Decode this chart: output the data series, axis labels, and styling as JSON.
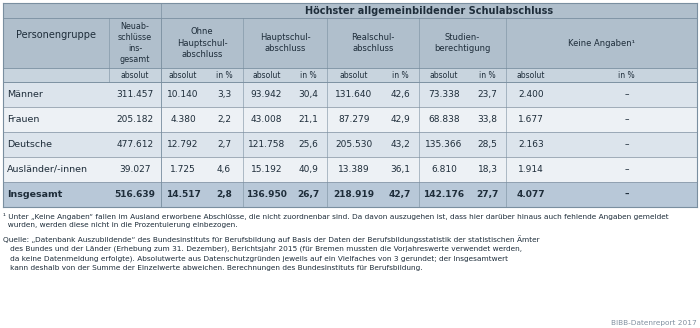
{
  "header_top": "Höchster allgemeinbildender Schulabschluss",
  "rows": [
    [
      "Männer",
      "311.457",
      "10.140",
      "3,3",
      "93.942",
      "30,4",
      "131.640",
      "42,6",
      "73.338",
      "23,7",
      "2.400",
      "–"
    ],
    [
      "Frauen",
      "205.182",
      "4.380",
      "2,2",
      "43.008",
      "21,1",
      "87.279",
      "42,9",
      "68.838",
      "33,8",
      "1.677",
      "–"
    ],
    [
      "Deutsche",
      "477.612",
      "12.792",
      "2,7",
      "121.758",
      "25,6",
      "205.530",
      "43,2",
      "135.366",
      "28,5",
      "2.163",
      "–"
    ],
    [
      "Ausländer/-innen",
      "39.027",
      "1.725",
      "4,6",
      "15.192",
      "40,9",
      "13.389",
      "36,1",
      "6.810",
      "18,3",
      "1.914",
      "–"
    ],
    [
      "Insgesamt",
      "516.639",
      "14.517",
      "2,8",
      "136.950",
      "26,7",
      "218.919",
      "42,7",
      "142.176",
      "27,7",
      "4.077",
      "–"
    ]
  ],
  "footnote1": "¹ Unter „Keine Angaben“ fallen im Ausland erworbene Abschlüsse, die nicht zuordnenbar sind. Da davon auszugehen ist, dass hier darüber hinaus auch fehlende Angaben gemeldet\n  wurden, werden diese nicht in die Prozentuierung einbezogen.",
  "source_line1": "Quelle: „Datenbank Auszubildende“ des Bundesinstituts für Berufsbildung auf Basis der Daten der Berufsbildungsstatistik der statistischen Ämter",
  "source_line2": "   des Bundes und der Länder (Erhebung zum 31. Dezember), Berichtsjahr 2015 (für Bremen mussten die Vorjahreswerte verwendet werden,",
  "source_line3": "   da keine Datenmeldung erfolgte). Absolutwerte aus Datenschutzgründen jeweils auf ein Vielfaches von 3 gerundet; der Insgesamtwert",
  "source_line4": "   kann deshalb von der Summe der Einzelwerte abweichen. Berechnungen des Bundesinstituts für Berufsbildung.",
  "bibb": "BIBB-Datenreport 2017",
  "bg_header": "#b0bfcc",
  "bg_subheader": "#c8d4de",
  "bg_row_odd": "#dce4ec",
  "bg_row_even": "#edf1f5",
  "bg_total": "#b8c8d8",
  "text_dark": "#1e2d3a"
}
